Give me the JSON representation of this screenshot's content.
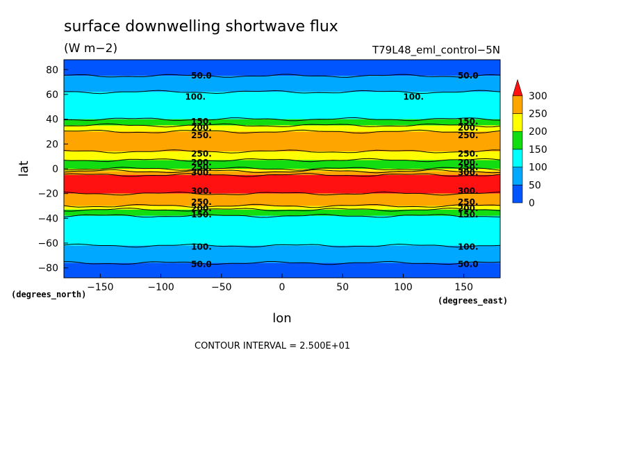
{
  "chart_data": {
    "type": "heatmap",
    "title": "surface downwelling shortwave flux",
    "units": "(W m−2)",
    "run_label": "T79L48_eml_control−5N",
    "xlabel": "lon",
    "ylabel": "lat",
    "x_unit_label": "(degrees_east)",
    "y_unit_label": "(degrees_north)",
    "footer": "CONTOUR INTERVAL = 2.500E+01",
    "xlim": [
      -180,
      180
    ],
    "ylim": [
      -88,
      88
    ],
    "x_ticks": [
      -150,
      -100,
      -50,
      0,
      50,
      100,
      150
    ],
    "y_ticks": [
      -80,
      -60,
      -40,
      -20,
      0,
      20,
      40,
      60,
      80
    ],
    "x_tick_labels": [
      "−150",
      "−100",
      "−50",
      "0",
      "50",
      "100",
      "150"
    ],
    "y_tick_labels": [
      "−80",
      "−60",
      "−40",
      "−20",
      "0",
      "20",
      "40",
      "60",
      "80"
    ],
    "colorbar": {
      "labels": [
        "0",
        "50",
        "100",
        "150",
        "200",
        "250",
        "300"
      ],
      "bins": [
        {
          "from": 0,
          "to": 50,
          "color": "#0055ff"
        },
        {
          "from": 50,
          "to": 100,
          "color": "#00a8ff"
        },
        {
          "from": 100,
          "to": 150,
          "color": "#00ffff"
        },
        {
          "from": 150,
          "to": 200,
          "color": "#11dd11"
        },
        {
          "from": 200,
          "to": 250,
          "color": "#ffff00"
        },
        {
          "from": 250,
          "to": 300,
          "color": "#ffa500"
        },
        {
          "from": 300,
          "to": 350,
          "color": "#ff1111"
        }
      ],
      "overflow_color": "#ff1111"
    },
    "zonal_bands": [
      {
        "lat_from": 75,
        "lat_to": 88,
        "bin": "0-50"
      },
      {
        "lat_from": 62,
        "lat_to": 75,
        "bin": "50-100"
      },
      {
        "lat_from": 40,
        "lat_to": 62,
        "bin": "100-150"
      },
      {
        "lat_from": 35,
        "lat_to": 40,
        "bin": "150-200"
      },
      {
        "lat_from": 30,
        "lat_to": 35,
        "bin": "200-250"
      },
      {
        "lat_from": 14,
        "lat_to": 30,
        "bin": "250-300"
      },
      {
        "lat_from": 7,
        "lat_to": 14,
        "bin": "200-250"
      },
      {
        "lat_from": 0,
        "lat_to": 7,
        "bin": "150-200"
      },
      {
        "lat_from": -2,
        "lat_to": 0,
        "bin": "200-250"
      },
      {
        "lat_from": -5,
        "lat_to": -2,
        "bin": "250-300"
      },
      {
        "lat_from": -20,
        "lat_to": -5,
        "bin": "300-350"
      },
      {
        "lat_from": -30,
        "lat_to": -20,
        "bin": "250-300"
      },
      {
        "lat_from": -33,
        "lat_to": -30,
        "bin": "200-250"
      },
      {
        "lat_from": -38,
        "lat_to": -33,
        "bin": "150-200"
      },
      {
        "lat_from": -62,
        "lat_to": -38,
        "bin": "100-150"
      },
      {
        "lat_from": -76,
        "lat_to": -62,
        "bin": "50-100"
      },
      {
        "lat_from": -88,
        "lat_to": -76,
        "bin": "0-50"
      }
    ],
    "contour_labels": [
      {
        "text": "50.0",
        "lon": -75,
        "lat": 75
      },
      {
        "text": "50.0",
        "lon": 145,
        "lat": 75
      },
      {
        "text": "100.",
        "lon": -80,
        "lat": 58
      },
      {
        "text": "100.",
        "lon": 100,
        "lat": 58
      },
      {
        "text": "150.",
        "lon": -75,
        "lat": 38
      },
      {
        "text": "150.",
        "lon": 145,
        "lat": 38
      },
      {
        "text": "200.",
        "lon": -75,
        "lat": 33
      },
      {
        "text": "200.",
        "lon": 145,
        "lat": 33
      },
      {
        "text": "250.",
        "lon": -75,
        "lat": 27
      },
      {
        "text": "250.",
        "lon": 145,
        "lat": 27
      },
      {
        "text": "250.",
        "lon": -75,
        "lat": 12
      },
      {
        "text": "250.",
        "lon": 145,
        "lat": 12
      },
      {
        "text": "200.",
        "lon": -75,
        "lat": 5
      },
      {
        "text": "200.",
        "lon": 145,
        "lat": 5
      },
      {
        "text": "250.",
        "lon": -75,
        "lat": 1
      },
      {
        "text": "250.",
        "lon": 145,
        "lat": 1
      },
      {
        "text": "300.",
        "lon": -75,
        "lat": -3
      },
      {
        "text": "300.",
        "lon": 145,
        "lat": -3
      },
      {
        "text": "300.",
        "lon": -75,
        "lat": -18
      },
      {
        "text": "300.",
        "lon": 145,
        "lat": -18
      },
      {
        "text": "250.",
        "lon": -75,
        "lat": -27
      },
      {
        "text": "250.",
        "lon": 145,
        "lat": -27
      },
      {
        "text": "200.",
        "lon": -75,
        "lat": -32
      },
      {
        "text": "200.",
        "lon": 145,
        "lat": -32
      },
      {
        "text": "150.",
        "lon": -75,
        "lat": -37
      },
      {
        "text": "150.",
        "lon": 145,
        "lat": -37
      },
      {
        "text": "100.",
        "lon": -75,
        "lat": -63
      },
      {
        "text": "100.",
        "lon": 145,
        "lat": -63
      },
      {
        "text": "50.0",
        "lon": -75,
        "lat": -77
      },
      {
        "text": "50.0",
        "lon": 145,
        "lat": -77
      }
    ]
  }
}
